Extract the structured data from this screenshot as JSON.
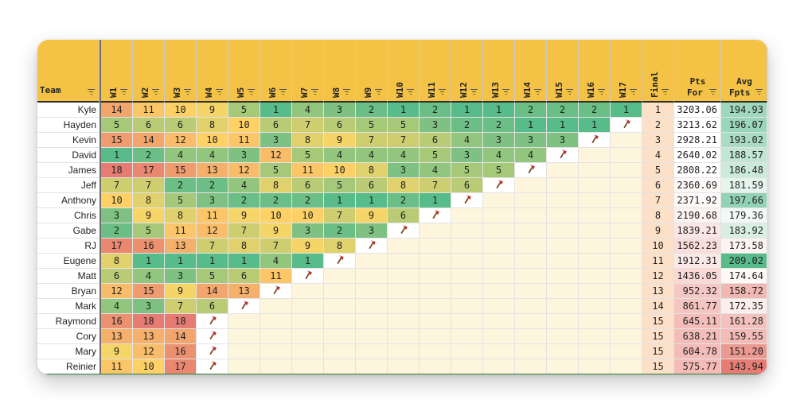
{
  "table": {
    "team_header": "Team",
    "week_headers": [
      "W1",
      "W2",
      "W3",
      "W4",
      "W5",
      "W6",
      "W7",
      "W8",
      "W9",
      "W10",
      "W11",
      "W12",
      "W13",
      "W14",
      "W15",
      "W16",
      "W17"
    ],
    "final_header": "Final",
    "pts_for_header": [
      "Pts",
      "For"
    ],
    "avg_header": [
      "Avg",
      "Fpts"
    ],
    "eliminated_icon": "axe-icon",
    "rows": [
      {
        "team": "Kyle",
        "weeks": [
          14,
          11,
          10,
          9,
          5,
          1,
          4,
          3,
          2,
          1,
          2,
          1,
          1,
          2,
          2,
          2,
          1
        ],
        "final": "1",
        "pts_for": "3203.06",
        "avg": "194.93"
      },
      {
        "team": "Hayden",
        "weeks": [
          5,
          6,
          6,
          8,
          10,
          6,
          7,
          6,
          5,
          5,
          3,
          2,
          2,
          1,
          1,
          1,
          "x"
        ],
        "final": "2",
        "pts_for": "3213.62",
        "avg": "196.07"
      },
      {
        "team": "Kevin",
        "weeks": [
          15,
          14,
          12,
          10,
          11,
          3,
          8,
          9,
          7,
          7,
          6,
          4,
          3,
          3,
          3,
          "x"
        ],
        "final": "3",
        "pts_for": "2928.21",
        "avg": "193.02"
      },
      {
        "team": "David",
        "weeks": [
          1,
          2,
          4,
          4,
          3,
          12,
          5,
          4,
          4,
          4,
          5,
          3,
          4,
          4,
          "x"
        ],
        "final": "4",
        "pts_for": "2640.02",
        "avg": "188.57"
      },
      {
        "team": "James",
        "weeks": [
          18,
          17,
          15,
          13,
          12,
          5,
          11,
          10,
          8,
          3,
          4,
          5,
          5,
          "x"
        ],
        "final": "5",
        "pts_for": "2808.22",
        "avg": "186.48"
      },
      {
        "team": "Jeff",
        "weeks": [
          7,
          7,
          2,
          2,
          4,
          8,
          6,
          5,
          6,
          8,
          7,
          6,
          "x"
        ],
        "final": "6",
        "pts_for": "2360.69",
        "avg": "181.59"
      },
      {
        "team": "Anthony",
        "weeks": [
          10,
          8,
          5,
          3,
          2,
          2,
          2,
          1,
          1,
          2,
          1,
          "x"
        ],
        "final": "7",
        "pts_for": "2371.92",
        "avg": "197.66"
      },
      {
        "team": "Chris",
        "weeks": [
          3,
          9,
          8,
          11,
          9,
          10,
          10,
          7,
          9,
          6,
          "x"
        ],
        "final": "8",
        "pts_for": "2190.68",
        "avg": "179.36"
      },
      {
        "team": "Gabe",
        "weeks": [
          2,
          5,
          11,
          12,
          7,
          9,
          3,
          2,
          3,
          "x"
        ],
        "final": "9",
        "pts_for": "1839.21",
        "avg": "183.92"
      },
      {
        "team": "RJ",
        "weeks": [
          17,
          16,
          13,
          7,
          8,
          7,
          9,
          8,
          "x"
        ],
        "final": "10",
        "pts_for": "1562.23",
        "avg": "173.58"
      },
      {
        "team": "Eugene",
        "weeks": [
          8,
          1,
          1,
          1,
          1,
          4,
          1,
          "x"
        ],
        "final": "11",
        "pts_for": "1912.31",
        "avg": "209.02"
      },
      {
        "team": "Matt",
        "weeks": [
          6,
          4,
          3,
          5,
          6,
          11,
          "x"
        ],
        "final": "12",
        "pts_for": "1436.05",
        "avg": "174.64"
      },
      {
        "team": "Bryan",
        "weeks": [
          12,
          15,
          9,
          14,
          13,
          "x"
        ],
        "final": "13",
        "pts_for": "952.32",
        "avg": "158.72"
      },
      {
        "team": "Mark",
        "weeks": [
          4,
          3,
          7,
          6,
          "x"
        ],
        "final": "14",
        "pts_for": "861.77",
        "avg": "172.35"
      },
      {
        "team": "Raymond",
        "weeks": [
          16,
          18,
          18,
          "x"
        ],
        "final": "15",
        "pts_for": "645.11",
        "avg": "161.28"
      },
      {
        "team": "Cory",
        "weeks": [
          13,
          13,
          14,
          "x"
        ],
        "final": "15",
        "pts_for": "638.21",
        "avg": "159.55"
      },
      {
        "team": "Mary",
        "weeks": [
          9,
          12,
          16,
          "x"
        ],
        "final": "15",
        "pts_for": "604.78",
        "avg": "151.20"
      },
      {
        "team": "Reinier",
        "weeks": [
          11,
          10,
          17,
          "x"
        ],
        "final": "15",
        "pts_for": "575.77",
        "avg": "143.94"
      }
    ]
  },
  "colors": {
    "header_bg": "#f4c245",
    "low_rank": "#57bb8a",
    "mid_rank": "#ffd666",
    "high_rank": "#e67c73",
    "empty_cell": "#fdf5dc",
    "final_col": "#fce0c8",
    "avg_high": "#57bb8a",
    "avg_low": "#e67c73"
  }
}
